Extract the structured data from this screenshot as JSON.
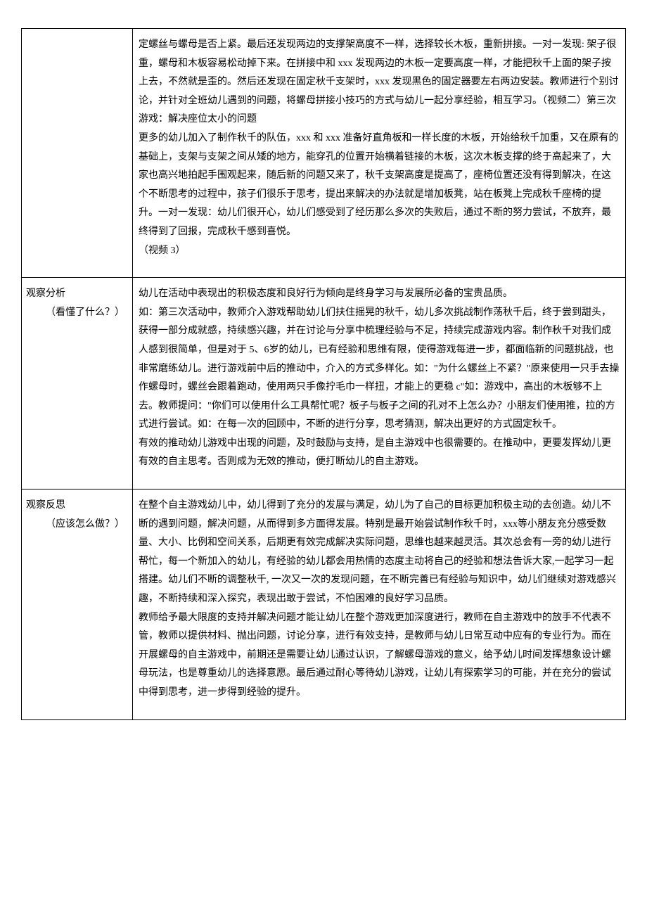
{
  "rows": [
    {
      "label_main": "",
      "label_sub": "",
      "content": "定螺丝与螺母是否上紧。最后还发现两边的支撑架高度不一样，选择较长木板，重新拼接。一对一发现:  架子很重，螺母和木板容易松动掉下来。在拼接中和 xxx 发现两边的木板一定要高度一样，才能把秋千上面的架子按上去，不然就是歪的。然后还发现在固定秋千支架时，xxx 发现黑色的固定器要左右两边安装。教师进行个别讨论，并针对全班幼儿遇到的问题，将螺母拼接小技巧的方式与幼儿一起分享经验，相互学习。（视频二）第三次游戏：解决座位太小的问题\n更多的幼儿加入了制作秋千的队伍，xxx 和 xxx 准备好直角板和一样长度的木板，开始给秋千加重，又在原有的基础上，支架与支架之间从矮的地方，能穿孔的位置开始横着链接的木板，这次木板支撑的终于高起来了，大家也高兴地拍起手围观起来，随后新的问题又来了，秋千支架高度是提高了，座椅位置还没有得到解决，在这个不断思考的过程中，孩子们很乐于思考，提出来解决的办法就是增加板凳，站在板凳上完成秋千座椅的提升。一对一发现：幼儿们很开心，幼儿们感受到了经历那么多次的失败后，通过不断的努力尝试，不放弃，最终得到了回报，完成秋千感到喜悦。\n（视频 3）"
    },
    {
      "label_main": "观察分析",
      "label_sub": "（看懂了什么？）",
      "content": "幼儿在活动中表现出的积极态度和良好行为倾向是终身学习与发展所必备的宝贵品质。\n如：第三次活动中，教师介入游戏帮助幼儿们扶住摇晃的秋千，幼儿多次挑战制作荡秋千后，终于尝到甜头，获得一部分成就感，持续感兴趣，并在讨论与分享中梳理经验与不足，持续完成游戏内容。制作秋千对我们成人感到很简单，但是对于 5、6岁的幼儿，已有经验和思维有限，使得游戏每进一步，都面临新的问题挑战，也非常磨练幼儿。进行游戏前中后的推动中，介入的方式多样化。如：\"为什么螺丝上不紧？\"原来使用一只手去操作螺母时，螺丝会跟着跑动，使用两只手像拧毛巾一样扭，才能上的更稳 c\"如：游戏中，高出的木板够不上去。教师提问：\"你们可以使用什么工具帮忙呢？板子与板子之间的孔对不上怎么办？小朋友们使用推，拉的方式进行尝试。如：在每一次的回顾中，不断的进行分享，思考猜测，解决出更好的方式固定秋千。\n有效的推动幼儿游戏中出现的问题，及时鼓励与支持，是自主游戏中也很需要的。在推动中，更要发挥幼儿更有效的自主思考。否则成为无效的推动，便打断幼儿的自主游戏。"
    },
    {
      "label_main": "观察反思",
      "label_sub": "（应该怎么做？）",
      "content": "在整个自主游戏幼儿中，幼儿得到了充分的发展与满足，幼儿为了自己的目标更加积极主动的去创造。幼儿不断的遇到问题，解决问题，从而得到多方面得发展。特别是最开始尝试制作秋千时，xxx等小朋友充分感受数量、大小、比例和空间关系，后期更有效完成解决实际问题，思维也越来越灵活。其次总会有一旁的幼儿进行帮忙，每一个新加入的幼儿，有经验的幼儿都会用热情的态度主动将自己的经验和想法告诉大家,一起学习一起搭建。幼儿们不断的调整秋千, 一次又一次的发现问题，在不断完善已有经验与知识中，幼儿们继续对游戏感兴趣，不断持续和深入探究，表现出敢于尝试，不怕困难的良好学习品质。\n教师给予最大限度的支持并解决问题才能让幼儿在整个游戏更加深度进行，教师在自主游戏中的放手不代表不管，教师以提供材料、抛出问题，讨论分享，进行有效支持，是教师与幼儿日常互动中应有的专业行为。而在开展螺母的自主游戏中，前期还是需要让幼儿通过认识，了解螺母游戏的意义，给予幼儿时间发挥想象设计螺母玩法，也是尊重幼儿的选择意愿。最后通过耐心等待幼儿游戏，让幼儿有探索学习的可能，并在充分的尝试中得到思考，进一步得到经验的提升。"
    }
  ]
}
